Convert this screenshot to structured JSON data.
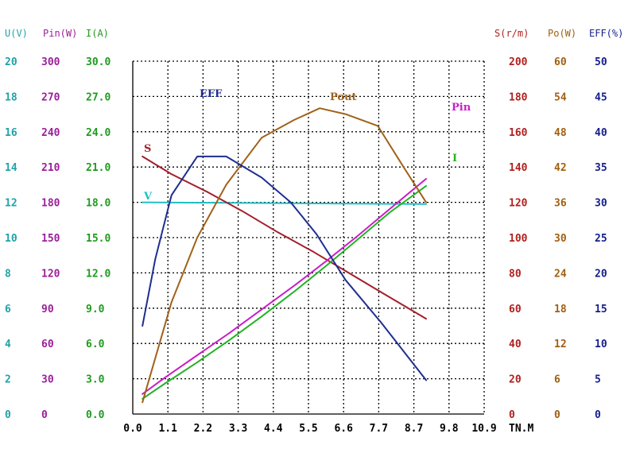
{
  "chart_data": {
    "type": "line",
    "xlabel": "TN.M",
    "x_ticks": [
      "0.0",
      "1.1",
      "2.2",
      "3.3",
      "4.4",
      "5.5",
      "6.6",
      "7.7",
      "8.7",
      "9.8",
      "10.9"
    ],
    "xlim": [
      0,
      10.9
    ],
    "grid": true,
    "axes": [
      {
        "id": "U",
        "header": "U(V)",
        "side": "left",
        "color": "#1fa3a8",
        "ticks": [
          "0",
          "2",
          "4",
          "6",
          "8",
          "10",
          "12",
          "14",
          "16",
          "18",
          "20"
        ],
        "range": [
          0,
          20
        ]
      },
      {
        "id": "Pin",
        "header": "Pin(W)",
        "side": "left",
        "color": "#9b1f9b",
        "ticks": [
          "0",
          "30",
          "60",
          "90",
          "120",
          "150",
          "180",
          "210",
          "240",
          "270",
          "300"
        ],
        "range": [
          0,
          300
        ]
      },
      {
        "id": "I",
        "header": "I(A)",
        "side": "left",
        "color": "#1f9b1f",
        "ticks": [
          "0.0",
          "3.0",
          "6.0",
          "9.0",
          "12.0",
          "15.0",
          "18.0",
          "21.0",
          "24.0",
          "27.0",
          "30.0"
        ],
        "range": [
          0,
          30
        ]
      },
      {
        "id": "S",
        "header": "S(r/m)",
        "side": "right",
        "color": "#b01f1f",
        "ticks": [
          "0",
          "20",
          "40",
          "60",
          "80",
          "100",
          "120",
          "140",
          "160",
          "180",
          "200"
        ],
        "range": [
          0,
          200
        ]
      },
      {
        "id": "Po",
        "header": "Po(W)",
        "side": "right",
        "color": "#a06010",
        "ticks": [
          "0",
          "6",
          "12",
          "18",
          "24",
          "30",
          "36",
          "42",
          "48",
          "54",
          "60"
        ],
        "range": [
          0,
          60
        ]
      },
      {
        "id": "EFF",
        "header": "EFF(%)",
        "side": "right",
        "color": "#141e8c",
        "ticks": [
          "0",
          "5",
          "10",
          "15",
          "20",
          "25",
          "30",
          "35",
          "40",
          "45",
          "50"
        ],
        "range": [
          0,
          50
        ]
      }
    ],
    "series": [
      {
        "name": "V",
        "axis": "U",
        "color": "#1fbfc4",
        "points": [
          [
            0.3,
            12.0
          ],
          [
            9.1,
            11.9
          ]
        ]
      },
      {
        "name": "S",
        "axis": "S",
        "color": "#a31f2a",
        "points": [
          [
            0.3,
            146
          ],
          [
            1.2,
            136
          ],
          [
            2.3,
            126
          ],
          [
            3.4,
            115
          ],
          [
            4.5,
            103
          ],
          [
            5.6,
            92
          ],
          [
            6.7,
            80
          ],
          [
            7.8,
            68
          ],
          [
            9.1,
            54
          ]
        ]
      },
      {
        "name": "Pin",
        "axis": "Pin",
        "color": "#c71fc7",
        "points": [
          [
            0.3,
            17
          ],
          [
            1.0,
            31
          ],
          [
            2.0,
            50
          ],
          [
            3.0,
            69
          ],
          [
            4.0,
            89
          ],
          [
            5.0,
            109
          ],
          [
            6.0,
            130
          ],
          [
            7.0,
            152
          ],
          [
            8.0,
            175
          ],
          [
            9.1,
            200
          ]
        ]
      },
      {
        "name": "I",
        "axis": "I",
        "color": "#22b422",
        "points": [
          [
            0.3,
            1.3
          ],
          [
            1.0,
            2.6
          ],
          [
            2.0,
            4.4
          ],
          [
            3.0,
            6.3
          ],
          [
            4.0,
            8.3
          ],
          [
            5.0,
            10.4
          ],
          [
            6.0,
            12.6
          ],
          [
            7.0,
            14.9
          ],
          [
            8.0,
            17.2
          ],
          [
            9.1,
            19.4
          ]
        ]
      },
      {
        "name": "Pout",
        "axis": "Po",
        "color": "#a0621a",
        "points": [
          [
            0.3,
            2
          ],
          [
            1.2,
            19
          ],
          [
            2.0,
            30
          ],
          [
            2.9,
            39
          ],
          [
            4.0,
            47
          ],
          [
            5.0,
            50
          ],
          [
            5.8,
            52
          ],
          [
            6.6,
            51
          ],
          [
            7.6,
            49
          ],
          [
            8.4,
            42
          ],
          [
            9.1,
            36
          ]
        ]
      },
      {
        "name": "EFF",
        "axis": "EFF",
        "color": "#1f2e8f",
        "points": [
          [
            0.3,
            12.5
          ],
          [
            0.7,
            22
          ],
          [
            1.2,
            31
          ],
          [
            2.0,
            36.5
          ],
          [
            2.9,
            36.5
          ],
          [
            4.0,
            33.5
          ],
          [
            4.9,
            30
          ],
          [
            5.7,
            25.5
          ],
          [
            6.6,
            19
          ],
          [
            7.7,
            13
          ],
          [
            9.1,
            4.8
          ]
        ]
      }
    ]
  }
}
